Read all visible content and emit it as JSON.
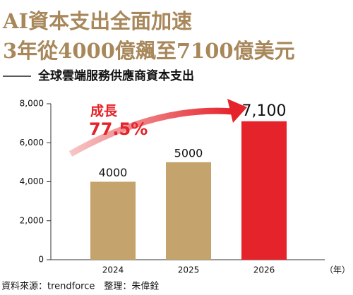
{
  "chart_data": {
    "type": "bar",
    "title": "AI資本支出全面加速",
    "subtitle": "3年從4000億飆至7100億美元",
    "caption": "全球雲端服務供應商資本支出",
    "categories": [
      "2024",
      "2025",
      "2026"
    ],
    "values": [
      4000,
      5000,
      7100
    ],
    "value_labels": [
      "4000",
      "5000",
      "7,100"
    ],
    "colors": [
      "#c4a36c",
      "#c4a36c",
      "#e5232a"
    ],
    "ylim": [
      0,
      8000
    ],
    "yticks": [
      0,
      {
        "value": 2000,
        "label": "2,000"
      },
      {
        "value": 4000,
        "label": "4,000"
      },
      {
        "value": 6000,
        "label": "6,000"
      },
      {
        "value": 8000,
        "label": "8,000"
      }
    ],
    "x_unit": "（年）",
    "annotation": {
      "label": "成長",
      "value": "77.5%"
    },
    "source": "資料來源：trendforce　整理：朱偉銓"
  }
}
